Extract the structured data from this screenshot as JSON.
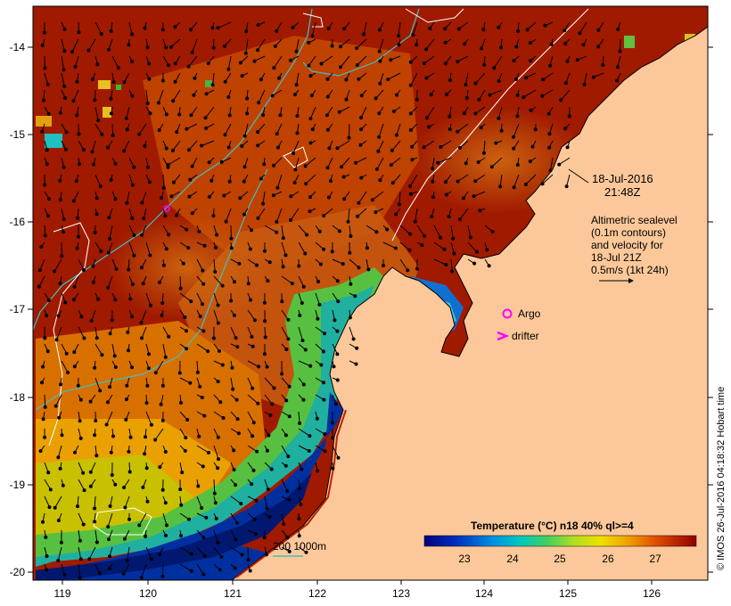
{
  "map": {
    "axes": {
      "x_ticks": [
        "119",
        "120",
        "121",
        "122",
        "123",
        "124",
        "125",
        "126"
      ],
      "y_ticks": [
        "-14",
        "-15",
        "-16",
        "-17",
        "-18",
        "-19",
        "-20"
      ]
    },
    "timestamp": {
      "date": "18-Jul-2016",
      "time": "21:48Z"
    },
    "velocity_note": {
      "lines": [
        "Altimetric sealevel",
        "(0.1m contours)",
        "and velocity for",
        "18-Jul 21Z",
        "0.5m/s (1kt 24h)"
      ]
    },
    "legend": {
      "argo_label": "Argo",
      "drifter_label": "drifter",
      "argo_color": "#ff00ff",
      "drifter_color": "#ff00ff"
    },
    "depth_legend": {
      "text": "200  1000m",
      "color": "#40c0c0"
    },
    "colorbar": {
      "title": "Temperature (°C) n18 40% ql>=4",
      "ticks": [
        "23",
        "24",
        "25",
        "26",
        "27"
      ]
    },
    "credit": "© IMOS 26-Jul-2016 04:18:32 Hobart time",
    "colors": {
      "land": "#fcc89a",
      "warm_water": "#a01a00",
      "mid_water": "#d86a00",
      "cool_water": "#f0c000",
      "green_water": "#58c040",
      "cold_water": "#0030a0",
      "contour": "#ffffff",
      "isobath": "#40c0c0"
    }
  }
}
